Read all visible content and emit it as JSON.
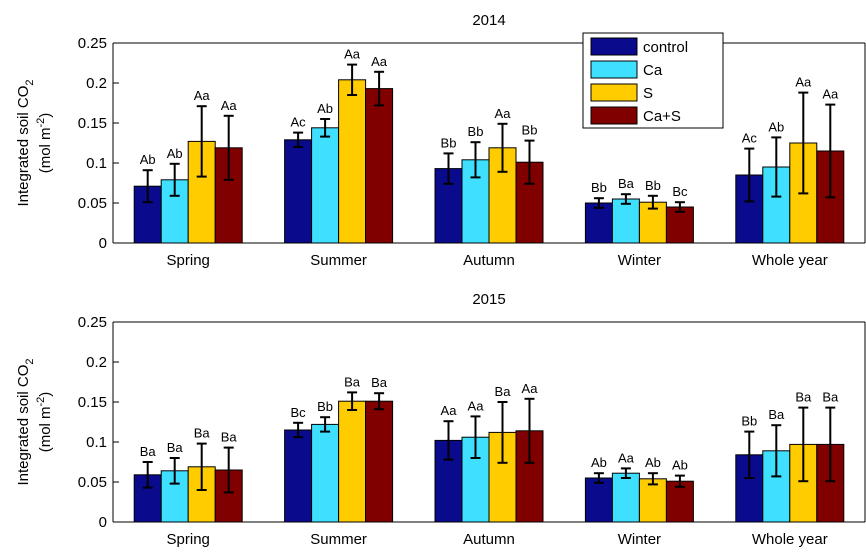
{
  "chart_data": [
    {
      "type": "bar",
      "title": "2014",
      "ylabel": {
        "line1": "Integrated soil CO",
        "line1_sub": "2",
        "line2": "(mol m",
        "line2_sup": "-2",
        "line2_end": ")"
      },
      "categories": [
        "Spring",
        "Summer",
        "Autumn",
        "Winter",
        "Whole year"
      ],
      "ylim": [
        0,
        0.25
      ],
      "yticks": [
        0,
        0.05,
        0.1,
        0.15,
        0.2,
        0.25
      ],
      "legend": "upper-right",
      "series": [
        {
          "name": "control",
          "color": "#0a0a8c",
          "values": [
            0.071,
            0.129,
            0.093,
            0.05,
            0.085
          ],
          "errors": [
            0.02,
            0.009,
            0.019,
            0.006,
            0.033
          ],
          "letters": [
            "Ab",
            "Ac",
            "Bb",
            "Bb",
            "Ac"
          ]
        },
        {
          "name": "Ca",
          "color": "#3fe0ff",
          "values": [
            0.079,
            0.144,
            0.104,
            0.055,
            0.095
          ],
          "errors": [
            0.02,
            0.011,
            0.022,
            0.006,
            0.037
          ],
          "letters": [
            "Ab",
            "Ab",
            "Bb",
            "Ba",
            "Ab"
          ]
        },
        {
          "name": "S",
          "color": "#ffcc00",
          "values": [
            0.127,
            0.204,
            0.119,
            0.051,
            0.125
          ],
          "errors": [
            0.044,
            0.019,
            0.03,
            0.008,
            0.063
          ],
          "letters": [
            "Aa",
            "Aa",
            "Aa",
            "Bb",
            "Aa"
          ]
        },
        {
          "name": "Ca+S",
          "color": "#800000",
          "values": [
            0.119,
            0.193,
            0.101,
            0.045,
            0.115
          ],
          "errors": [
            0.04,
            0.021,
            0.027,
            0.006,
            0.058
          ],
          "letters": [
            "Aa",
            "Aa",
            "Bb",
            "Bc",
            "Aa"
          ]
        }
      ]
    },
    {
      "type": "bar",
      "title": "2015",
      "ylabel": {
        "line1": "Integrated soil CO",
        "line1_sub": "2",
        "line2": "(mol m",
        "line2_sup": "-2",
        "line2_end": ")"
      },
      "categories": [
        "Spring",
        "Summer",
        "Autumn",
        "Winter",
        "Whole year"
      ],
      "ylim": [
        0,
        0.25
      ],
      "yticks": [
        0,
        0.05,
        0.1,
        0.15,
        0.2,
        0.25
      ],
      "series": [
        {
          "color": "#0a0a8c",
          "values": [
            0.059,
            0.115,
            0.102,
            0.055,
            0.084
          ],
          "errors": [
            0.016,
            0.009,
            0.024,
            0.006,
            0.029
          ],
          "letters": [
            "Ba",
            "Bc",
            "Aa",
            "Ab",
            "Bb"
          ]
        },
        {
          "color": "#3fe0ff",
          "values": [
            0.064,
            0.122,
            0.106,
            0.061,
            0.089
          ],
          "errors": [
            0.016,
            0.009,
            0.026,
            0.006,
            0.032
          ],
          "letters": [
            "Ba",
            "Bb",
            "Aa",
            "Aa",
            "Ba"
          ]
        },
        {
          "color": "#ffcc00",
          "values": [
            0.069,
            0.151,
            0.112,
            0.054,
            0.097
          ],
          "errors": [
            0.029,
            0.011,
            0.038,
            0.007,
            0.046
          ],
          "letters": [
            "Ba",
            "Ba",
            "Ba",
            "Ab",
            "Ba"
          ]
        },
        {
          "color": "#800000",
          "values": [
            0.065,
            0.151,
            0.114,
            0.051,
            0.097
          ],
          "errors": [
            0.028,
            0.01,
            0.04,
            0.007,
            0.046
          ],
          "letters": [
            "Ba",
            "Ba",
            "Aa",
            "Ab",
            "Ba"
          ]
        }
      ]
    }
  ]
}
